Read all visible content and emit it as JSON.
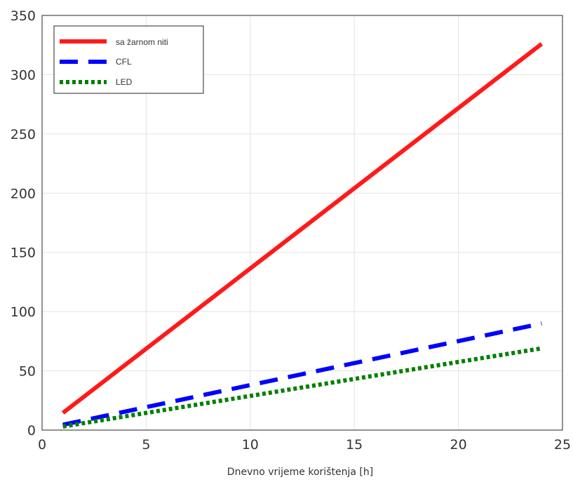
{
  "chart_data": {
    "type": "line",
    "title": "",
    "xlabel": "Dnevno vrijeme korištenja [h]",
    "ylabel": "",
    "xlim": [
      0,
      25
    ],
    "ylim": [
      0,
      350
    ],
    "xticks": [
      0,
      5,
      10,
      15,
      20,
      25
    ],
    "yticks": [
      0,
      50,
      100,
      150,
      200,
      250,
      300,
      350
    ],
    "grid": true,
    "legend_position": "top-left",
    "series": [
      {
        "name": "sa žarnom niti",
        "color": "#ff1a1a",
        "style": "solid",
        "x": [
          1,
          24
        ],
        "y": [
          14.5,
          326
        ]
      },
      {
        "name": "CFL",
        "color": "#0000ff",
        "style": "dashed",
        "x": [
          1,
          24
        ],
        "y": [
          4.5,
          90
        ]
      },
      {
        "name": "LED",
        "color": "#008000",
        "style": "dotted",
        "x": [
          1,
          24
        ],
        "y": [
          3,
          69
        ]
      }
    ]
  }
}
